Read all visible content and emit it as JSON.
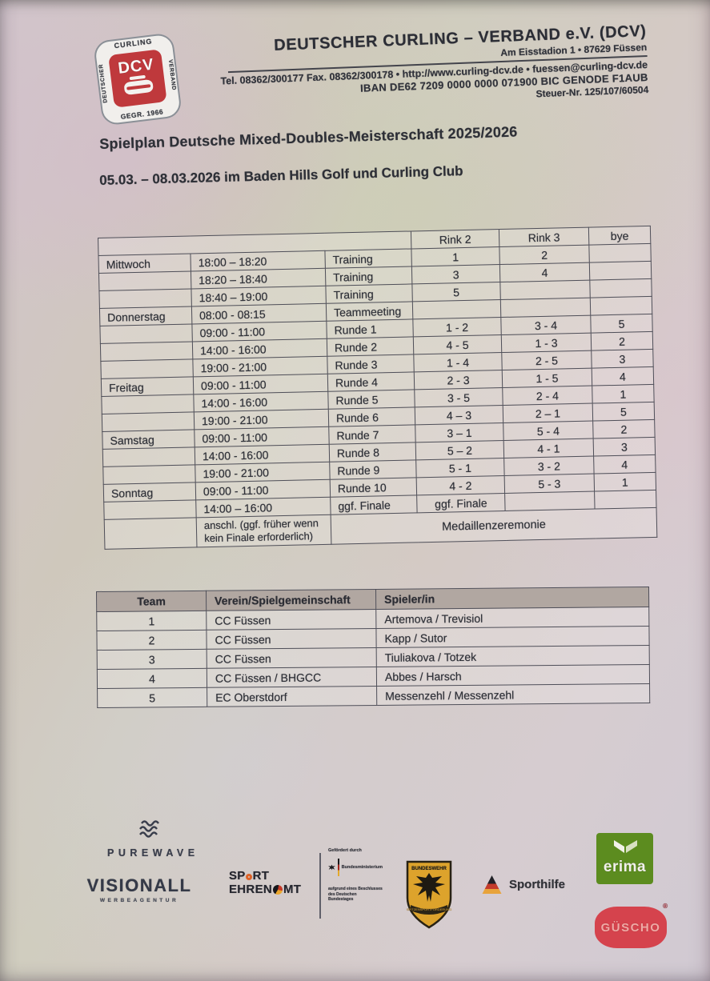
{
  "letterhead": {
    "org_name": "DEUTSCHER CURLING – VERBAND e.V. (DCV)",
    "address": "Am Eisstadion 1 • 87629 Füssen",
    "contact": "Tel. 08362/300177 Fax. 08362/300178 • http://www.curling-dcv.de • fuessen@curling-dcv.de",
    "iban_line": "IBAN DE62 7209 0000 0000 071900 BIC GENODE F1AUB",
    "tax_line": "Steuer-Nr. 125/107/60504",
    "logo": {
      "top": "CURLING",
      "left": "DEUTSCHER",
      "right": "VERBAND",
      "bottom": "GEGR. 1966",
      "center": "DCV",
      "red": "#bf393c"
    }
  },
  "title": "Spielplan Deutsche Mixed-Doubles-Meisterschaft 2025/2026",
  "subtitle": "05.03. – 08.03.2026 im Baden Hills Golf und Curling Club",
  "schedule": {
    "col_headers": [
      "Rink 2",
      "Rink 3",
      "bye"
    ],
    "rows": [
      {
        "day": "Mittwoch",
        "time": "18:00 – 18:20",
        "event": "Training",
        "rink2": "1",
        "rink3": "2",
        "bye": ""
      },
      {
        "day": "",
        "time": "18:20 – 18:40",
        "event": "Training",
        "rink2": "3",
        "rink3": "4",
        "bye": ""
      },
      {
        "day": "",
        "time": "18:40 – 19:00",
        "event": "Training",
        "rink2": "5",
        "rink3": "",
        "bye": ""
      },
      {
        "day": "Donnerstag",
        "time": "08:00 - 08:15",
        "event": "Teammeeting",
        "rink2": "",
        "rink3": "",
        "bye": ""
      },
      {
        "day": "",
        "time": "09:00 - 11:00",
        "event": "Runde 1",
        "rink2": "1 - 2",
        "rink3": "3 - 4",
        "bye": "5"
      },
      {
        "day": "",
        "time": "14:00 - 16:00",
        "event": "Runde 2",
        "rink2": "4 - 5",
        "rink3": "1 - 3",
        "bye": "2"
      },
      {
        "day": "",
        "time": "19:00 - 21:00",
        "event": "Runde 3",
        "rink2": "1 - 4",
        "rink3": "2 - 5",
        "bye": "3"
      },
      {
        "day": "Freitag",
        "time": "09:00 - 11:00",
        "event": "Runde 4",
        "rink2": "2 - 3",
        "rink3": "1 - 5",
        "bye": "4"
      },
      {
        "day": "",
        "time": "14:00 - 16:00",
        "event": "Runde 5",
        "rink2": "3 - 5",
        "rink3": "2 - 4",
        "bye": "1"
      },
      {
        "day": "",
        "time": "19:00 - 21:00",
        "event": "Runde 6",
        "rink2": "4 – 3",
        "rink3": "2 – 1",
        "bye": "5"
      },
      {
        "day": "Samstag",
        "time": "09:00 - 11:00",
        "event": "Runde 7",
        "rink2": "3 – 1",
        "rink3": "5 - 4",
        "bye": "2"
      },
      {
        "day": "",
        "time": "14:00 - 16:00",
        "event": "Runde 8",
        "rink2": "5 – 2",
        "rink3": "4 - 1",
        "bye": "3"
      },
      {
        "day": "",
        "time": "19:00 - 21:00",
        "event": "Runde 9",
        "rink2": "5 - 1",
        "rink3": "3 - 2",
        "bye": "4"
      },
      {
        "day": "Sonntag",
        "time": "09:00 - 11:00",
        "event": "Runde 10",
        "rink2": "4 - 2",
        "rink3": "5 - 3",
        "bye": "1"
      },
      {
        "day": "",
        "time": "14:00 – 16:00",
        "event": "ggf. Finale",
        "rink2": "ggf. Finale",
        "rink3": "",
        "bye": ""
      }
    ],
    "closing_row": {
      "time_note": "anschl. (ggf. früher wenn kein Finale erforderlich)",
      "event": "Medaillenzeremonie"
    }
  },
  "teams": {
    "headers": [
      "Team",
      "Verein/Spielgemeinschaft",
      "Spieler/in"
    ],
    "rows": [
      [
        "1",
        "CC Füssen",
        "Artemova / Trevisiol"
      ],
      [
        "2",
        "CC Füssen",
        "Kapp / Sutor"
      ],
      [
        "3",
        "CC Füssen",
        "Tiuliakova / Totzek"
      ],
      [
        "4",
        "CC Füssen / BHGCC",
        "Abbes / Harsch"
      ],
      [
        "5",
        "EC Oberstdorf",
        "Messenzehl / Messenzehl"
      ]
    ]
  },
  "sponsors": {
    "purewave": {
      "name": "PUREWAVE"
    },
    "visionall": {
      "name": "VISIONALL",
      "sub": "WERBEAGENTUR"
    },
    "sport_ehrenamt": {
      "l1a": "SP",
      "l1b": "RT",
      "l2a": "EHREN",
      "l2b": "MT"
    },
    "funding": {
      "caption": "Gefördert durch",
      "ministry": "Bundesministerium",
      "note": "aufgrund eines Beschlusses des Deutschen Bundestages"
    },
    "bundeswehr": {
      "top": "BUNDESWEHR",
      "banner": "SPITZENSPORTFÖRDERUNG"
    },
    "sporthilfe": {
      "name": "Sporthilfe"
    },
    "erima": {
      "name": "erima",
      "green": "#5c8c1f"
    },
    "guscho": {
      "name": "GÜSCHO",
      "reg": "®",
      "red": "#d5434d"
    }
  }
}
